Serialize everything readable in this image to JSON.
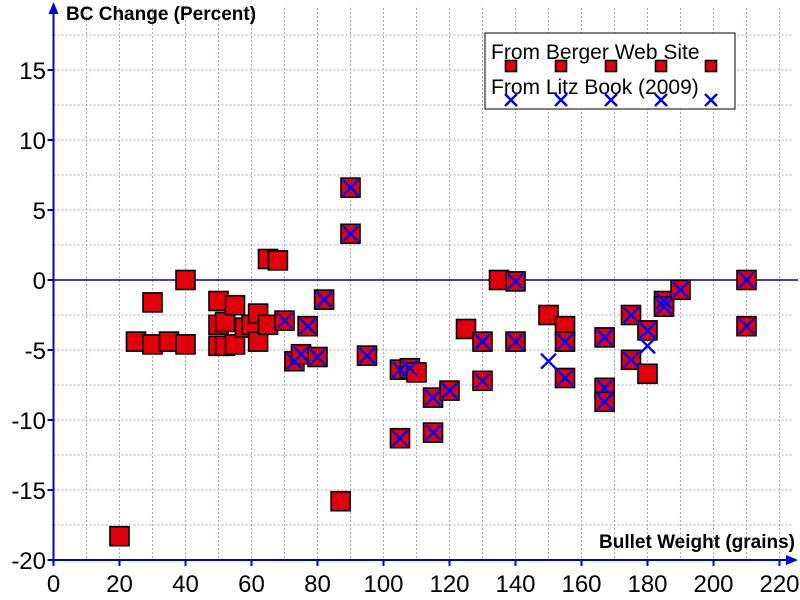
{
  "chart_data": {
    "type": "scatter",
    "ylabel": "BC Change (Percent)",
    "xlabel": "Bullet Weight (grains)",
    "xlim": [
      0,
      230
    ],
    "ylim": [
      -20,
      18
    ],
    "x_ticks": [
      0,
      20,
      40,
      60,
      80,
      100,
      120,
      140,
      160,
      180,
      200,
      220
    ],
    "y_ticks": [
      -20,
      -15,
      -10,
      -5,
      0,
      5,
      10,
      15
    ],
    "grid": true,
    "grid_style": "dotted",
    "legend_position": "top-right",
    "colors": {
      "axis": "#0000cc",
      "zero_line": "#0000aa",
      "grid": "#a8a8c8",
      "marker_red": "#e0000b",
      "marker_blue": "#0000ee"
    },
    "series": [
      {
        "name": "From Berger Web Site",
        "marker": "square",
        "color": "#e0000b",
        "points": [
          [
            20,
            -18.3
          ],
          [
            25,
            -4.4
          ],
          [
            30,
            -4.6
          ],
          [
            30,
            -1.6
          ],
          [
            35,
            -4.4
          ],
          [
            40,
            0.0
          ],
          [
            40,
            -4.6
          ],
          [
            50,
            -1.5
          ],
          [
            50,
            -3.2
          ],
          [
            50,
            -4.7
          ],
          [
            52,
            -3.0
          ],
          [
            52,
            -4.7
          ],
          [
            55,
            -1.8
          ],
          [
            55,
            -4.6
          ],
          [
            58,
            -3.4
          ],
          [
            60,
            -3.2
          ],
          [
            62,
            -2.4
          ],
          [
            62,
            -4.4
          ],
          [
            65,
            1.5
          ],
          [
            65,
            -3.2
          ],
          [
            68,
            1.4
          ],
          [
            70,
            -2.9
          ],
          [
            73,
            -5.8
          ],
          [
            75,
            -5.3
          ],
          [
            77,
            -3.3
          ],
          [
            80,
            -5.5
          ],
          [
            82,
            -1.4
          ],
          [
            87,
            -15.8
          ],
          [
            90,
            6.6
          ],
          [
            90,
            3.3
          ],
          [
            95,
            -5.4
          ],
          [
            105,
            -6.4
          ],
          [
            105,
            -11.3
          ],
          [
            108,
            -6.3
          ],
          [
            110,
            -6.6
          ],
          [
            115,
            -8.4
          ],
          [
            115,
            -10.9
          ],
          [
            120,
            -7.9
          ],
          [
            125,
            -3.5
          ],
          [
            130,
            -7.2
          ],
          [
            130,
            -4.4
          ],
          [
            135,
            0.0
          ],
          [
            140,
            -0.1
          ],
          [
            140,
            -4.4
          ],
          [
            150,
            -2.5
          ],
          [
            155,
            -3.3
          ],
          [
            155,
            -7.0
          ],
          [
            155,
            -4.4
          ],
          [
            167,
            -4.1
          ],
          [
            167,
            -7.7
          ],
          [
            167,
            -8.7
          ],
          [
            175,
            -2.5
          ],
          [
            175,
            -5.7
          ],
          [
            180,
            -3.6
          ],
          [
            180,
            -6.7
          ],
          [
            185,
            -1.5
          ],
          [
            185,
            -1.9
          ],
          [
            190,
            -0.7
          ],
          [
            210,
            0.0
          ],
          [
            210,
            -3.3
          ]
        ]
      },
      {
        "name": "From Litz Book (2009)",
        "marker": "x",
        "color": "#0000ee",
        "points": [
          [
            70,
            -2.9
          ],
          [
            73,
            -5.8
          ],
          [
            75,
            -5.3
          ],
          [
            77,
            -3.3
          ],
          [
            80,
            -5.5
          ],
          [
            82,
            -1.4
          ],
          [
            90,
            6.6
          ],
          [
            90,
            3.3
          ],
          [
            95,
            -5.4
          ],
          [
            105,
            -6.4
          ],
          [
            105,
            -11.3
          ],
          [
            108,
            -6.3
          ],
          [
            115,
            -8.4
          ],
          [
            115,
            -10.9
          ],
          [
            120,
            -7.9
          ],
          [
            130,
            -7.2
          ],
          [
            130,
            -4.4
          ],
          [
            140,
            -0.1
          ],
          [
            140,
            -4.4
          ],
          [
            150,
            -5.8
          ],
          [
            155,
            -7.0
          ],
          [
            155,
            -4.4
          ],
          [
            167,
            -4.1
          ],
          [
            167,
            -7.7
          ],
          [
            167,
            -8.7
          ],
          [
            175,
            -2.5
          ],
          [
            175,
            -5.7
          ],
          [
            180,
            -3.6
          ],
          [
            180,
            -4.7
          ],
          [
            185,
            -1.5
          ],
          [
            185,
            -1.9
          ],
          [
            190,
            -0.7
          ],
          [
            210,
            0.0
          ],
          [
            210,
            -3.3
          ]
        ]
      }
    ]
  }
}
